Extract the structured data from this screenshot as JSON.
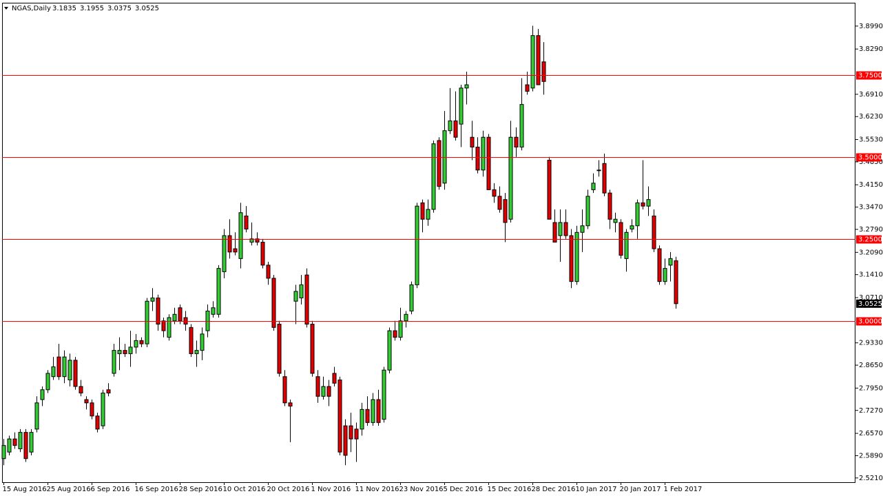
{
  "chart_data": {
    "type": "candlestick",
    "title": "NGAS,Daily",
    "categories": [
      "15 Aug 2016",
      null,
      null,
      null,
      null,
      null,
      null,
      null,
      "25 Aug 2016",
      null,
      null,
      null,
      null,
      null,
      null,
      null,
      "6 Sep 2016",
      null,
      null,
      null,
      null,
      null,
      null,
      null,
      "16 Sep 2016",
      null,
      null,
      null,
      null,
      null,
      null,
      null,
      "28 Sep 2016",
      null,
      null,
      null,
      null,
      null,
      null,
      null,
      "10 Oct 2016",
      null,
      null,
      null,
      null,
      null,
      null,
      null,
      "20 Oct 2016",
      null,
      null,
      null,
      null,
      null,
      null,
      null,
      "1 Nov 2016",
      null,
      null,
      null,
      null,
      null,
      null,
      null,
      "11 Nov 2016",
      null,
      null,
      null,
      null,
      null,
      null,
      null,
      "23 Nov 2016",
      null,
      null,
      null,
      null,
      null,
      null,
      null,
      "5 Dec 2016",
      null,
      null,
      null,
      null,
      null,
      null,
      null,
      "15 Dec 2016",
      null,
      null,
      null,
      null,
      null,
      null,
      null,
      "28 Dec 2016",
      null,
      null,
      null,
      null,
      null,
      null,
      null,
      "10 Jan 2017",
      null,
      null,
      null,
      null,
      null,
      null,
      null,
      "20 Jan 2017",
      null,
      null,
      null,
      null,
      null,
      null,
      null,
      "1 Feb 2017",
      null,
      null
    ],
    "ohlc": [
      [
        2.58,
        2.64,
        2.56,
        2.62
      ],
      [
        2.6,
        2.65,
        2.59,
        2.64
      ],
      [
        2.64,
        2.66,
        2.61,
        2.62
      ],
      [
        2.61,
        2.67,
        2.6,
        2.66
      ],
      [
        2.66,
        2.67,
        2.57,
        2.58
      ],
      [
        2.6,
        2.67,
        2.59,
        2.66
      ],
      [
        2.67,
        2.77,
        2.66,
        2.75
      ],
      [
        2.76,
        2.8,
        2.74,
        2.79
      ],
      [
        2.79,
        2.85,
        2.78,
        2.84
      ],
      [
        2.83,
        2.89,
        2.82,
        2.86
      ],
      [
        2.89,
        2.93,
        2.82,
        2.83
      ],
      [
        2.83,
        2.91,
        2.81,
        2.89
      ],
      [
        2.82,
        2.9,
        2.8,
        2.88
      ],
      [
        2.88,
        2.89,
        2.79,
        2.8
      ],
      [
        2.8,
        2.82,
        2.77,
        2.78
      ],
      [
        2.76,
        2.77,
        2.73,
        2.75
      ],
      [
        2.75,
        2.76,
        2.7,
        2.71
      ],
      [
        2.71,
        2.72,
        2.66,
        2.67
      ],
      [
        2.68,
        2.79,
        2.67,
        2.78
      ],
      [
        2.79,
        2.81,
        2.77,
        2.78
      ],
      [
        2.84,
        2.93,
        2.83,
        2.91
      ],
      [
        2.9,
        2.95,
        2.85,
        2.91
      ],
      [
        2.91,
        2.93,
        2.89,
        2.9
      ],
      [
        2.9,
        2.97,
        2.86,
        2.92
      ],
      [
        2.92,
        2.96,
        2.9,
        2.94
      ],
      [
        2.94,
        2.95,
        2.92,
        2.93
      ],
      [
        2.93,
        3.07,
        2.92,
        3.06
      ],
      [
        3.06,
        3.1,
        3.03,
        3.07
      ],
      [
        3.07,
        3.08,
        2.97,
        2.99
      ],
      [
        3.0,
        3.01,
        2.95,
        2.97
      ],
      [
        2.95,
        3.02,
        2.94,
        3.01
      ],
      [
        3.0,
        3.04,
        2.99,
        3.02
      ],
      [
        3.04,
        3.05,
        2.99,
        3.0
      ],
      [
        3.01,
        3.03,
        2.97,
        2.99
      ],
      [
        2.98,
        2.99,
        2.89,
        2.9
      ],
      [
        2.9,
        2.94,
        2.86,
        2.91
      ],
      [
        2.91,
        2.98,
        2.88,
        2.96
      ],
      [
        2.97,
        3.05,
        2.95,
        3.03
      ],
      [
        3.02,
        3.06,
        3.01,
        3.04
      ],
      [
        3.02,
        3.17,
        3.01,
        3.16
      ],
      [
        3.15,
        3.28,
        3.13,
        3.26
      ],
      [
        3.26,
        3.31,
        3.19,
        3.21
      ],
      [
        3.22,
        3.27,
        3.2,
        3.21
      ],
      [
        3.19,
        3.36,
        3.16,
        3.33
      ],
      [
        3.32,
        3.35,
        3.27,
        3.28
      ],
      [
        3.24,
        3.3,
        3.23,
        3.25
      ],
      [
        3.25,
        3.27,
        3.23,
        3.24
      ],
      [
        3.24,
        3.25,
        3.16,
        3.17
      ],
      [
        3.17,
        3.18,
        3.11,
        3.13
      ],
      [
        3.13,
        3.14,
        2.97,
        2.98
      ],
      [
        2.99,
        3.0,
        2.83,
        2.84
      ],
      [
        2.83,
        2.85,
        2.74,
        2.75
      ],
      [
        2.75,
        2.76,
        2.63,
        2.74
      ],
      [
        3.06,
        3.11,
        2.99,
        3.09
      ],
      [
        3.07,
        3.14,
        3.05,
        3.11
      ],
      [
        3.14,
        3.16,
        2.98,
        2.99
      ],
      [
        2.99,
        3.0,
        2.83,
        2.84
      ],
      [
        2.83,
        2.85,
        2.75,
        2.77
      ],
      [
        2.77,
        2.83,
        2.76,
        2.8
      ],
      [
        2.8,
        2.82,
        2.74,
        2.77
      ],
      [
        2.84,
        2.86,
        2.8,
        2.81
      ],
      [
        2.82,
        2.83,
        2.59,
        2.6
      ],
      [
        2.68,
        2.7,
        2.56,
        2.59
      ],
      [
        2.68,
        2.72,
        2.6,
        2.64
      ],
      [
        2.67,
        2.69,
        2.57,
        2.64
      ],
      [
        2.67,
        2.75,
        2.65,
        2.73
      ],
      [
        2.73,
        2.77,
        2.68,
        2.69
      ],
      [
        2.69,
        2.78,
        2.68,
        2.76
      ],
      [
        2.76,
        2.79,
        2.68,
        2.69
      ],
      [
        2.7,
        2.86,
        2.69,
        2.85
      ],
      [
        2.85,
        2.98,
        2.84,
        2.97
      ],
      [
        2.97,
        3.0,
        2.94,
        2.95
      ],
      [
        2.95,
        3.04,
        2.94,
        3.0
      ],
      [
        3.0,
        3.03,
        2.98,
        3.02
      ],
      [
        3.03,
        3.12,
        3.02,
        3.11
      ],
      [
        3.11,
        3.36,
        3.1,
        3.35
      ],
      [
        3.36,
        3.37,
        3.27,
        3.31
      ],
      [
        3.31,
        3.37,
        3.29,
        3.34
      ],
      [
        3.34,
        3.55,
        3.33,
        3.54
      ],
      [
        3.55,
        3.56,
        3.4,
        3.41
      ],
      [
        3.42,
        3.64,
        3.4,
        3.58
      ],
      [
        3.58,
        3.71,
        3.57,
        3.61
      ],
      [
        3.61,
        3.7,
        3.55,
        3.56
      ],
      [
        3.6,
        3.72,
        3.53,
        3.71
      ],
      [
        3.71,
        3.76,
        3.66,
        3.72
      ],
      [
        3.56,
        3.61,
        3.49,
        3.53
      ],
      [
        3.53,
        3.56,
        3.45,
        3.46
      ],
      [
        3.46,
        3.58,
        3.44,
        3.56
      ],
      [
        3.56,
        3.57,
        3.4,
        3.4
      ],
      [
        3.4,
        3.42,
        3.36,
        3.38
      ],
      [
        3.38,
        3.41,
        3.33,
        3.34
      ],
      [
        3.37,
        3.39,
        3.24,
        3.3
      ],
      [
        3.31,
        3.61,
        3.3,
        3.56
      ],
      [
        3.56,
        3.59,
        3.5,
        3.53
      ],
      [
        3.53,
        3.74,
        3.52,
        3.66
      ],
      [
        3.72,
        3.76,
        3.69,
        3.7
      ],
      [
        3.71,
        3.9,
        3.7,
        3.87
      ],
      [
        3.87,
        3.89,
        3.72,
        3.72
      ],
      [
        3.79,
        3.85,
        3.69,
        3.73
      ],
      [
        3.49,
        3.5,
        3.31,
        3.31
      ],
      [
        3.3,
        3.34,
        3.24,
        3.24
      ],
      [
        3.26,
        3.34,
        3.18,
        3.3
      ],
      [
        3.3,
        3.34,
        3.25,
        3.26
      ],
      [
        3.26,
        3.28,
        3.1,
        3.12
      ],
      [
        3.12,
        3.29,
        3.11,
        3.27
      ],
      [
        3.27,
        3.34,
        3.21,
        3.29
      ],
      [
        3.29,
        3.4,
        3.28,
        3.38
      ],
      [
        3.4,
        3.45,
        3.39,
        3.42
      ],
      [
        3.46,
        3.49,
        3.44,
        3.46
      ],
      [
        3.48,
        3.51,
        3.38,
        3.39
      ],
      [
        3.39,
        3.4,
        3.28,
        3.31
      ],
      [
        3.3,
        3.33,
        3.27,
        3.31
      ],
      [
        3.3,
        3.31,
        3.19,
        3.2
      ],
      [
        3.19,
        3.28,
        3.15,
        3.27
      ],
      [
        3.28,
        3.31,
        3.27,
        3.29
      ],
      [
        3.29,
        3.37,
        3.25,
        3.36
      ],
      [
        3.36,
        3.49,
        3.34,
        3.35
      ],
      [
        3.35,
        3.41,
        3.32,
        3.37
      ],
      [
        3.32,
        3.34,
        3.21,
        3.22
      ],
      [
        3.22,
        3.23,
        3.11,
        3.12
      ],
      [
        3.12,
        3.19,
        3.11,
        3.16
      ],
      [
        3.17,
        3.21,
        3.12,
        3.19
      ],
      [
        3.1835,
        3.1955,
        3.0375,
        3.0525
      ]
    ],
    "up_color": "#32cd32",
    "down_color": "#e00000",
    "level_color": "#ff0000",
    "ylim": [
      2.508,
      3.968
    ],
    "yticks": [
      {
        "value": 3.899,
        "label": "3.8990"
      },
      {
        "value": 3.829,
        "label": "3.8290"
      },
      {
        "value": 3.691,
        "label": "3.6910"
      },
      {
        "value": 3.623,
        "label": "3.6230"
      },
      {
        "value": 3.553,
        "label": "3.5530"
      },
      {
        "value": 3.485,
        "label": "3.4850"
      },
      {
        "value": 3.415,
        "label": "3.4150"
      },
      {
        "value": 3.347,
        "label": "3.3470"
      },
      {
        "value": 3.279,
        "label": "3.2790"
      },
      {
        "value": 3.209,
        "label": "3.2090"
      },
      {
        "value": 3.141,
        "label": "3.1410"
      },
      {
        "value": 3.071,
        "label": "3.0710"
      },
      {
        "value": 2.933,
        "label": "2.9330"
      },
      {
        "value": 2.865,
        "label": "2.8650"
      },
      {
        "value": 2.795,
        "label": "2.7950"
      },
      {
        "value": 2.727,
        "label": "2.7270"
      },
      {
        "value": 2.657,
        "label": "2.6570"
      },
      {
        "value": 2.589,
        "label": "2.5890"
      },
      {
        "value": 2.521,
        "label": "2.5210"
      }
    ],
    "levels": [
      {
        "value": 3.75,
        "label": "3.7500"
      },
      {
        "value": 3.5,
        "label": "3.5000"
      },
      {
        "value": 3.25,
        "label": "3.2500"
      },
      {
        "value": 3.0,
        "label": "3.0000"
      }
    ]
  }
}
